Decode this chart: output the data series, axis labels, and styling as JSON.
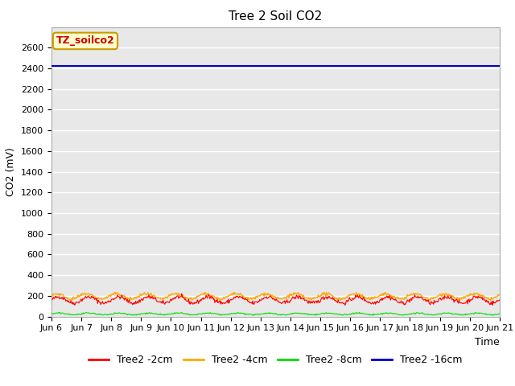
{
  "title": "Tree 2 Soil CO2",
  "xlabel": "Time",
  "ylabel": "CO2 (mV)",
  "ylim": [
    0,
    2800
  ],
  "yticks": [
    0,
    200,
    400,
    600,
    800,
    1000,
    1200,
    1400,
    1600,
    1800,
    2000,
    2200,
    2400,
    2600
  ],
  "xtick_labels": [
    "Jun 6",
    "Jun 7",
    "Jun 8",
    "Jun 9",
    "Jun 10",
    "Jun 11",
    "Jun 12",
    "Jun 13",
    "Jun 14",
    "Jun 15",
    "Jun 16",
    "Jun 17",
    "Jun 18",
    "Jun 19",
    "Jun 20",
    "Jun 21"
  ],
  "n_days": 15,
  "blue_value": 2420,
  "red_mean": 160,
  "red_amp": 30,
  "yellow_mean": 195,
  "yellow_amp": 25,
  "green_mean": 25,
  "green_amp": 8,
  "line_colors": {
    "red": "#ff0000",
    "yellow": "#ffaa00",
    "green": "#00dd00",
    "blue": "#0000cc"
  },
  "legend_labels": [
    "Tree2 -2cm",
    "Tree2 -4cm",
    "Tree2 -8cm",
    "Tree2 -16cm"
  ],
  "legend_colors": [
    "#ff0000",
    "#ffaa00",
    "#00dd00",
    "#0000cc"
  ],
  "annotation_text": "TZ_soilco2",
  "annotation_bg": "#ffffcc",
  "annotation_border": "#cc9900",
  "annotation_text_color": "#cc0000",
  "bg_color": "#e8e8e8",
  "title_fontsize": 11,
  "axis_label_fontsize": 9,
  "tick_fontsize": 8,
  "legend_fontsize": 9
}
